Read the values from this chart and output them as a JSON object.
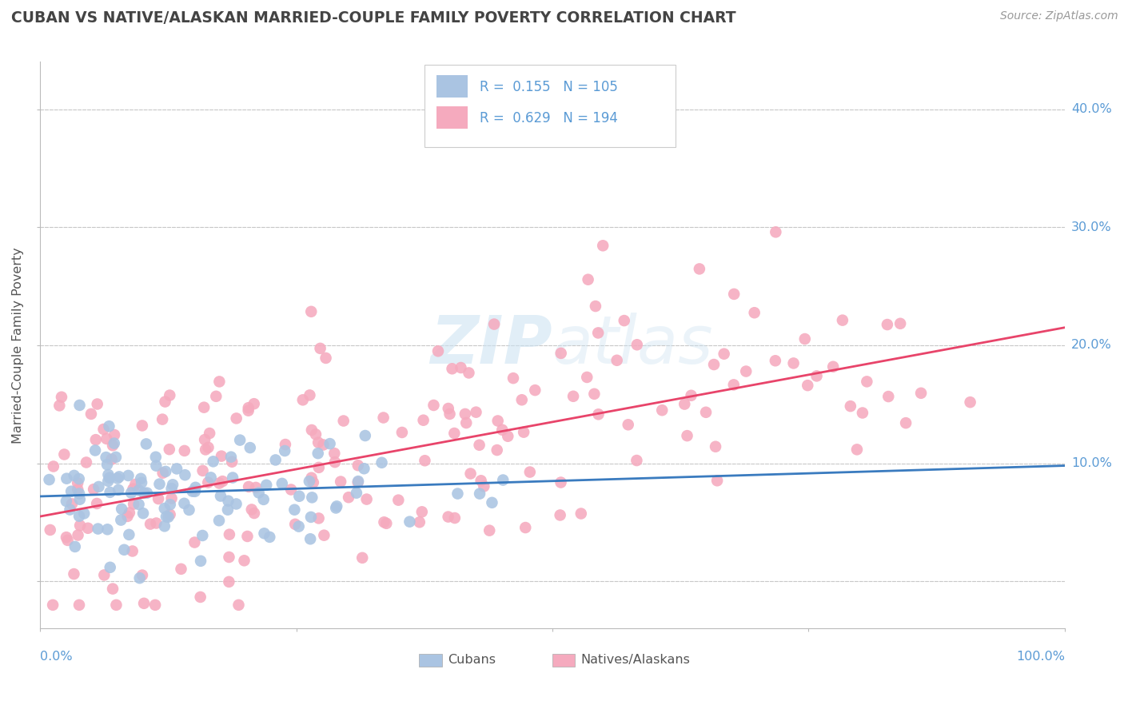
{
  "title": "CUBAN VS NATIVE/ALASKAN MARRIED-COUPLE FAMILY POVERTY CORRELATION CHART",
  "source_text": "Source: ZipAtlas.com",
  "ylabel": "Married-Couple Family Poverty",
  "xlim": [
    0.0,
    1.0
  ],
  "ylim": [
    -0.04,
    0.44
  ],
  "yticks": [
    0.0,
    0.1,
    0.2,
    0.3,
    0.4
  ],
  "ytick_labels": [
    "",
    "10.0%",
    "20.0%",
    "30.0%",
    "40.0%"
  ],
  "watermark_zip": "ZIP",
  "watermark_atlas": "atlas",
  "cubans_R": "0.155",
  "cubans_N": "105",
  "natives_R": "0.629",
  "natives_N": "194",
  "cubans_color": "#aac4e2",
  "cubans_line_color": "#3a7bbf",
  "natives_color": "#f5aabe",
  "natives_line_color": "#e8446a",
  "background_color": "#ffffff",
  "grid_color": "#c8c8c8",
  "title_color": "#444444",
  "tick_label_color": "#5b9bd5",
  "label_text_color": "#555555",
  "legend_text_color": "#333333",
  "legend_border_color": "#cccccc",
  "cubans_line_y0": 0.072,
  "cubans_line_y1": 0.098,
  "natives_line_y0": 0.055,
  "natives_line_y1": 0.215
}
